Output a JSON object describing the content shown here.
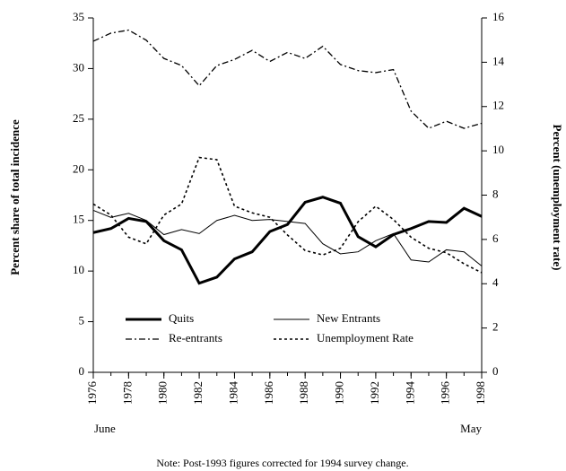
{
  "chart_data": {
    "type": "line",
    "y_label": "Percent share of total incidence",
    "y2_label": "Percent (unemployment rate)",
    "note": "Note: Post-1993 figures corrected for 1994 survey change.",
    "x_start_label": "June",
    "x_end_label": "May",
    "x": [
      1976,
      1977,
      1978,
      1979,
      1980,
      1981,
      1982,
      1983,
      1984,
      1985,
      1986,
      1987,
      1988,
      1989,
      1990,
      1991,
      1992,
      1993,
      1994,
      1995,
      1996,
      1997,
      1998
    ],
    "xlim": [
      1976,
      1998
    ],
    "xticks": [
      1976,
      1978,
      1980,
      1982,
      1984,
      1986,
      1988,
      1990,
      1992,
      1994,
      1996,
      1998
    ],
    "ylim": [
      0,
      35
    ],
    "yticks": [
      0,
      5,
      10,
      15,
      20,
      25,
      30,
      35
    ],
    "y2lim": [
      0,
      16
    ],
    "y2ticks": [
      0,
      2,
      4,
      6,
      8,
      10,
      12,
      14,
      16
    ],
    "series": [
      {
        "name": "Quits",
        "color": "#000000",
        "width": 3,
        "style": "solid",
        "values": [
          13.8,
          14.2,
          15.2,
          14.9,
          13.0,
          12.1,
          8.8,
          9.4,
          11.2,
          11.9,
          13.9,
          14.6,
          16.8,
          17.3,
          16.7,
          13.4,
          12.4,
          13.6,
          14.2,
          14.9,
          14.8,
          16.2,
          15.4
        ]
      },
      {
        "name": "New Entrants",
        "color": "#000000",
        "width": 1,
        "style": "solid",
        "values": [
          16.0,
          15.3,
          15.7,
          15.0,
          13.6,
          14.1,
          13.7,
          15.0,
          15.5,
          15.0,
          15.1,
          14.9,
          14.7,
          12.7,
          11.7,
          11.9,
          13.0,
          13.7,
          11.1,
          10.9,
          12.1,
          11.9,
          10.5
        ]
      },
      {
        "name": "Re-entrants",
        "color": "#000000",
        "width": 1.3,
        "style": "dashdot",
        "values": [
          32.7,
          33.5,
          33.8,
          32.8,
          31.0,
          30.3,
          28.3,
          30.3,
          30.9,
          31.8,
          30.7,
          31.6,
          31.0,
          32.2,
          30.4,
          29.8,
          29.6,
          29.9,
          25.8,
          24.1,
          24.8,
          24.1,
          24.6
        ]
      },
      {
        "name": "Unemployment Rate",
        "color": "#000000",
        "width": 1.6,
        "style": "dotted",
        "axis": "y2",
        "values": [
          7.6,
          7.1,
          6.1,
          5.8,
          7.1,
          7.6,
          9.7,
          9.6,
          7.5,
          7.2,
          7.0,
          6.2,
          5.5,
          5.3,
          5.6,
          6.8,
          7.5,
          6.9,
          6.1,
          5.6,
          5.4,
          4.9,
          4.5
        ]
      }
    ]
  }
}
